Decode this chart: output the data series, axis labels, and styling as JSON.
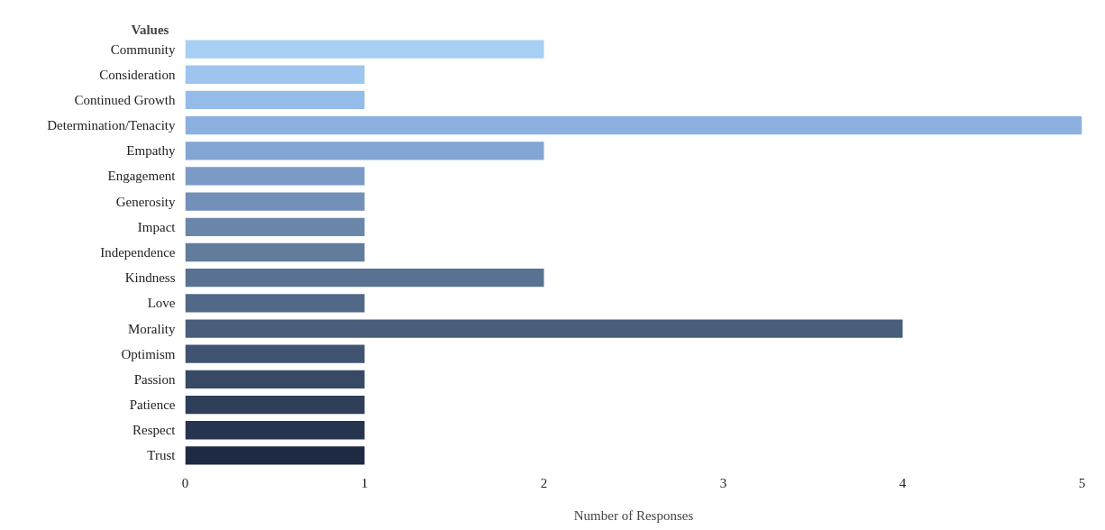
{
  "chart_data": {
    "type": "bar",
    "orientation": "horizontal",
    "ylabel": "Values",
    "xlabel": "Number of Responses",
    "categories": [
      "Community",
      "Consideration",
      "Continued Growth",
      "Determination/Tenacity",
      "Empathy",
      "Engagement",
      "Generosity",
      "Impact",
      "Independence",
      "Kindness",
      "Love",
      "Morality",
      "Optimism",
      "Passion",
      "Patience",
      "Respect",
      "Trust"
    ],
    "values": [
      2,
      1,
      1,
      5,
      2,
      1,
      1,
      1,
      1,
      2,
      1,
      4,
      1,
      1,
      1,
      1,
      1
    ],
    "colors": [
      "#a6cff3",
      "#9ec5ee",
      "#95bbe8",
      "#8cb1e0",
      "#84a6d4",
      "#7b9bc6",
      "#7391b8",
      "#6a87aa",
      "#627c9c",
      "#597291",
      "#516886",
      "#485e7b",
      "#405370",
      "#374965",
      "#2f3f5a",
      "#26344f",
      "#1e2a44"
    ],
    "xlim": [
      0,
      5
    ],
    "xticks": [
      0,
      1,
      2,
      3,
      4,
      5
    ],
    "grid": false
  }
}
